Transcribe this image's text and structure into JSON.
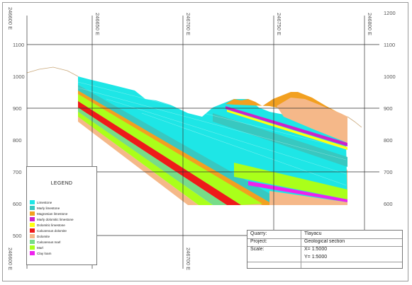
{
  "elevation_labels": [
    "1200",
    "1100",
    "1000",
    "900",
    "800",
    "700",
    "600",
    "500"
  ],
  "easting_labels": [
    "246600 E",
    "246650 E",
    "246700 E",
    "246750 E",
    "246800 E"
  ],
  "legend": {
    "title": "LEGEND",
    "items": [
      {
        "label": "Limestone",
        "color": "#1ee6e6"
      },
      {
        "label": "Marly limestone",
        "color": "#38c8c0"
      },
      {
        "label": "Magnesian limestone",
        "color": "#f2a020"
      },
      {
        "label": "Marly dolomitic limestone",
        "color": "#cc22cc"
      },
      {
        "label": "Dolomitic limestone",
        "color": "#ffff10"
      },
      {
        "label": "Calcareous dolomite",
        "color": "#ee1a1a"
      },
      {
        "label": "Dolomite",
        "color": "#f5b889"
      },
      {
        "label": "Calcareous marl",
        "color": "#77dd88"
      },
      {
        "label": "Marl",
        "color": "#aaff1a"
      },
      {
        "label": "Clay loam",
        "color": "#ee22ee"
      }
    ]
  },
  "info": {
    "quarry_key": "Quarry:",
    "quarry_val": "Tlayacu",
    "project_key": "Project:",
    "project_val": "Geological section",
    "scale_key": "Scale:",
    "scale_x": "X= 1:5000",
    "scale_y": "Y= 1:5000"
  },
  "colors": {
    "limestone": "#1ee6e6",
    "marly_limestone": "#38c8c0",
    "magnesian": "#f2a020",
    "marly_dolo": "#cc22cc",
    "dolomitic": "#ffff10",
    "calc_dolomite": "#ee1a1a",
    "dolomite": "#f5b889",
    "calc_marl": "#77dd88",
    "marl": "#aaff1a",
    "clay": "#ee22ee",
    "grid": "#333333",
    "terrain": "#c9a87a"
  }
}
